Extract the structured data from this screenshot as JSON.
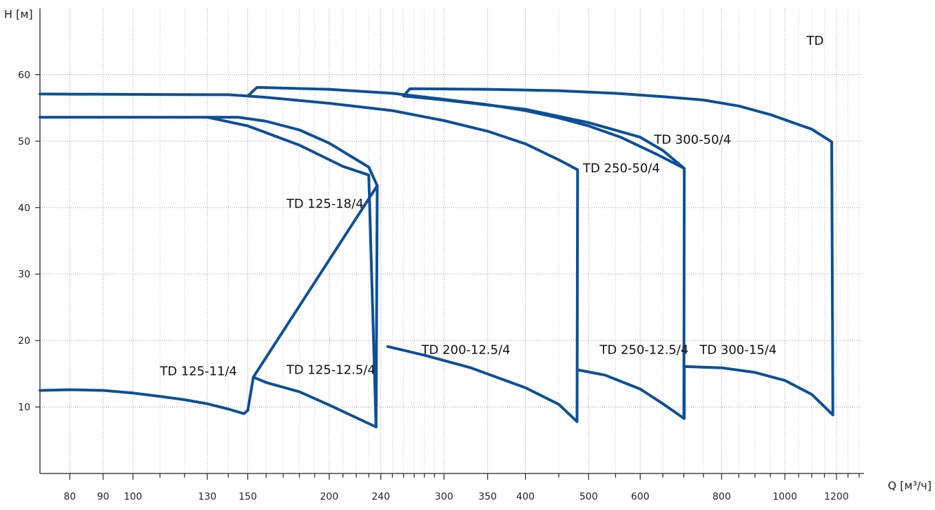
{
  "chart_data": {
    "type": "line",
    "title": "TD",
    "xlabel": "Q [м³/ч]",
    "ylabel": "H [м]",
    "x_scale": "log",
    "x_ticks": [
      80,
      90,
      100,
      130,
      150,
      200,
      240,
      300,
      350,
      400,
      500,
      600,
      800,
      1000,
      1200
    ],
    "x_minor": [
      110,
      120,
      140,
      160,
      170,
      180,
      190,
      210,
      220,
      230,
      250,
      260,
      270,
      280,
      290,
      450,
      550,
      650,
      700,
      750,
      850,
      900,
      950,
      1050,
      1100,
      1150,
      1250,
      1300
    ],
    "y_ticks": [
      10,
      20,
      30,
      40,
      50,
      60
    ],
    "xlim": [
      72,
      1310
    ],
    "ylim": [
      0,
      70
    ],
    "grid": true,
    "line_color": "#0d4f98",
    "series": [
      {
        "name": "TD 125-11/4",
        "points": [
          [
            72,
            12.5
          ],
          [
            80,
            12.6
          ],
          [
            90,
            12.5
          ],
          [
            100,
            12.1
          ],
          [
            110,
            11.6
          ],
          [
            120,
            11.1
          ],
          [
            130,
            10.5
          ],
          [
            140,
            9.7
          ],
          [
            148,
            9.0
          ],
          [
            150,
            9.5
          ]
        ]
      },
      {
        "name": "TD 125-12.5/4",
        "points": [
          [
            150,
            9.5
          ],
          [
            153,
            14.5
          ],
          [
            160,
            13.7
          ],
          [
            180,
            12.3
          ],
          [
            200,
            10.3
          ],
          [
            220,
            8.4
          ],
          [
            236,
            7.0
          ],
          [
            237,
            43.3
          ],
          [
            230,
            46.1
          ],
          [
            200,
            49.7
          ],
          [
            180,
            51.7
          ],
          [
            160,
            53.0
          ],
          [
            145,
            53.6
          ],
          [
            130,
            53.6
          ],
          [
            72,
            53.6
          ]
        ]
      },
      {
        "name": "TD 125-18/4",
        "points": [
          [
            153,
            14.5
          ],
          [
            237,
            43.3
          ]
        ]
      },
      {
        "name": "TD 200-12.5/4",
        "points": [
          [
            130,
            53.6
          ],
          [
            150,
            52.3
          ],
          [
            180,
            49.4
          ],
          [
            210,
            46.2
          ],
          [
            230,
            44.9
          ],
          [
            236,
            7.0
          ]
        ]
      },
      {
        "name": "TD 250-50/4",
        "points": [
          [
            246,
            19.1
          ],
          [
            280,
            17.8
          ],
          [
            330,
            15.9
          ],
          [
            400,
            12.9
          ],
          [
            450,
            10.4
          ],
          [
            480,
            7.8
          ],
          [
            481,
            45.7
          ],
          [
            450,
            47.2
          ],
          [
            400,
            49.6
          ],
          [
            350,
            51.5
          ],
          [
            300,
            53.1
          ],
          [
            250,
            54.6
          ],
          [
            200,
            55.7
          ],
          [
            160,
            56.6
          ],
          [
            140,
            57.0
          ],
          [
            130,
            57.0
          ],
          [
            72,
            57.1
          ]
        ]
      },
      {
        "name": "TD 250-12.5/4",
        "points": [
          [
            481,
            15.6
          ],
          [
            530,
            14.8
          ],
          [
            600,
            12.7
          ],
          [
            650,
            10.5
          ],
          [
            700,
            8.3
          ],
          [
            701,
            45.9
          ],
          [
            650,
            48.6
          ],
          [
            600,
            50.6
          ],
          [
            500,
            52.8
          ],
          [
            400,
            54.8
          ],
          [
            300,
            56.2
          ],
          [
            260,
            56.8
          ],
          [
            266,
            57.9
          ],
          [
            350,
            57.8
          ],
          [
            450,
            57.6
          ],
          [
            550,
            57.2
          ],
          [
            650,
            56.7
          ],
          [
            750,
            56.2
          ],
          [
            850,
            55.3
          ],
          [
            950,
            54.0
          ],
          [
            1100,
            51.8
          ],
          [
            1180,
            49.9
          ],
          [
            1185,
            8.8
          ],
          [
            1100,
            11.9
          ],
          [
            1000,
            14.0
          ],
          [
            900,
            15.2
          ],
          [
            800,
            15.9
          ],
          [
            700,
            16.1
          ]
        ]
      },
      {
        "name": "TD 300-50/4",
        "points": [
          [
            150,
            56.8
          ],
          [
            155,
            58.1
          ],
          [
            200,
            57.8
          ],
          [
            250,
            57.2
          ],
          [
            300,
            56.3
          ],
          [
            350,
            55.5
          ],
          [
            400,
            54.6
          ],
          [
            450,
            53.5
          ],
          [
            500,
            52.3
          ],
          [
            560,
            50.6
          ],
          [
            640,
            47.9
          ],
          [
            701,
            45.9
          ]
        ]
      },
      {
        "name": "TD 300-15/4",
        "points": [
          [
            701,
            16.1
          ],
          [
            701,
            8.3
          ]
        ]
      }
    ],
    "labels": [
      {
        "text": "TD 125-11/4",
        "x": 110,
        "y": 14.8
      },
      {
        "text": "TD 125-12.5/4",
        "x": 172,
        "y": 15.0
      },
      {
        "text": "TD 125-18/4",
        "x": 172,
        "y": 40.0
      },
      {
        "text": "TD 200-12.5/4",
        "x": 277,
        "y": 18.0
      },
      {
        "text": "TD 250-50/4",
        "x": 490,
        "y": 45.3
      },
      {
        "text": "TD 250-12.5/4",
        "x": 520,
        "y": 18.0
      },
      {
        "text": "TD 300-50/4",
        "x": 630,
        "y": 49.6
      },
      {
        "text": "TD 300-15/4",
        "x": 740,
        "y": 18.0
      },
      {
        "text": "TD",
        "x": 1080,
        "y": 64.5
      }
    ]
  }
}
